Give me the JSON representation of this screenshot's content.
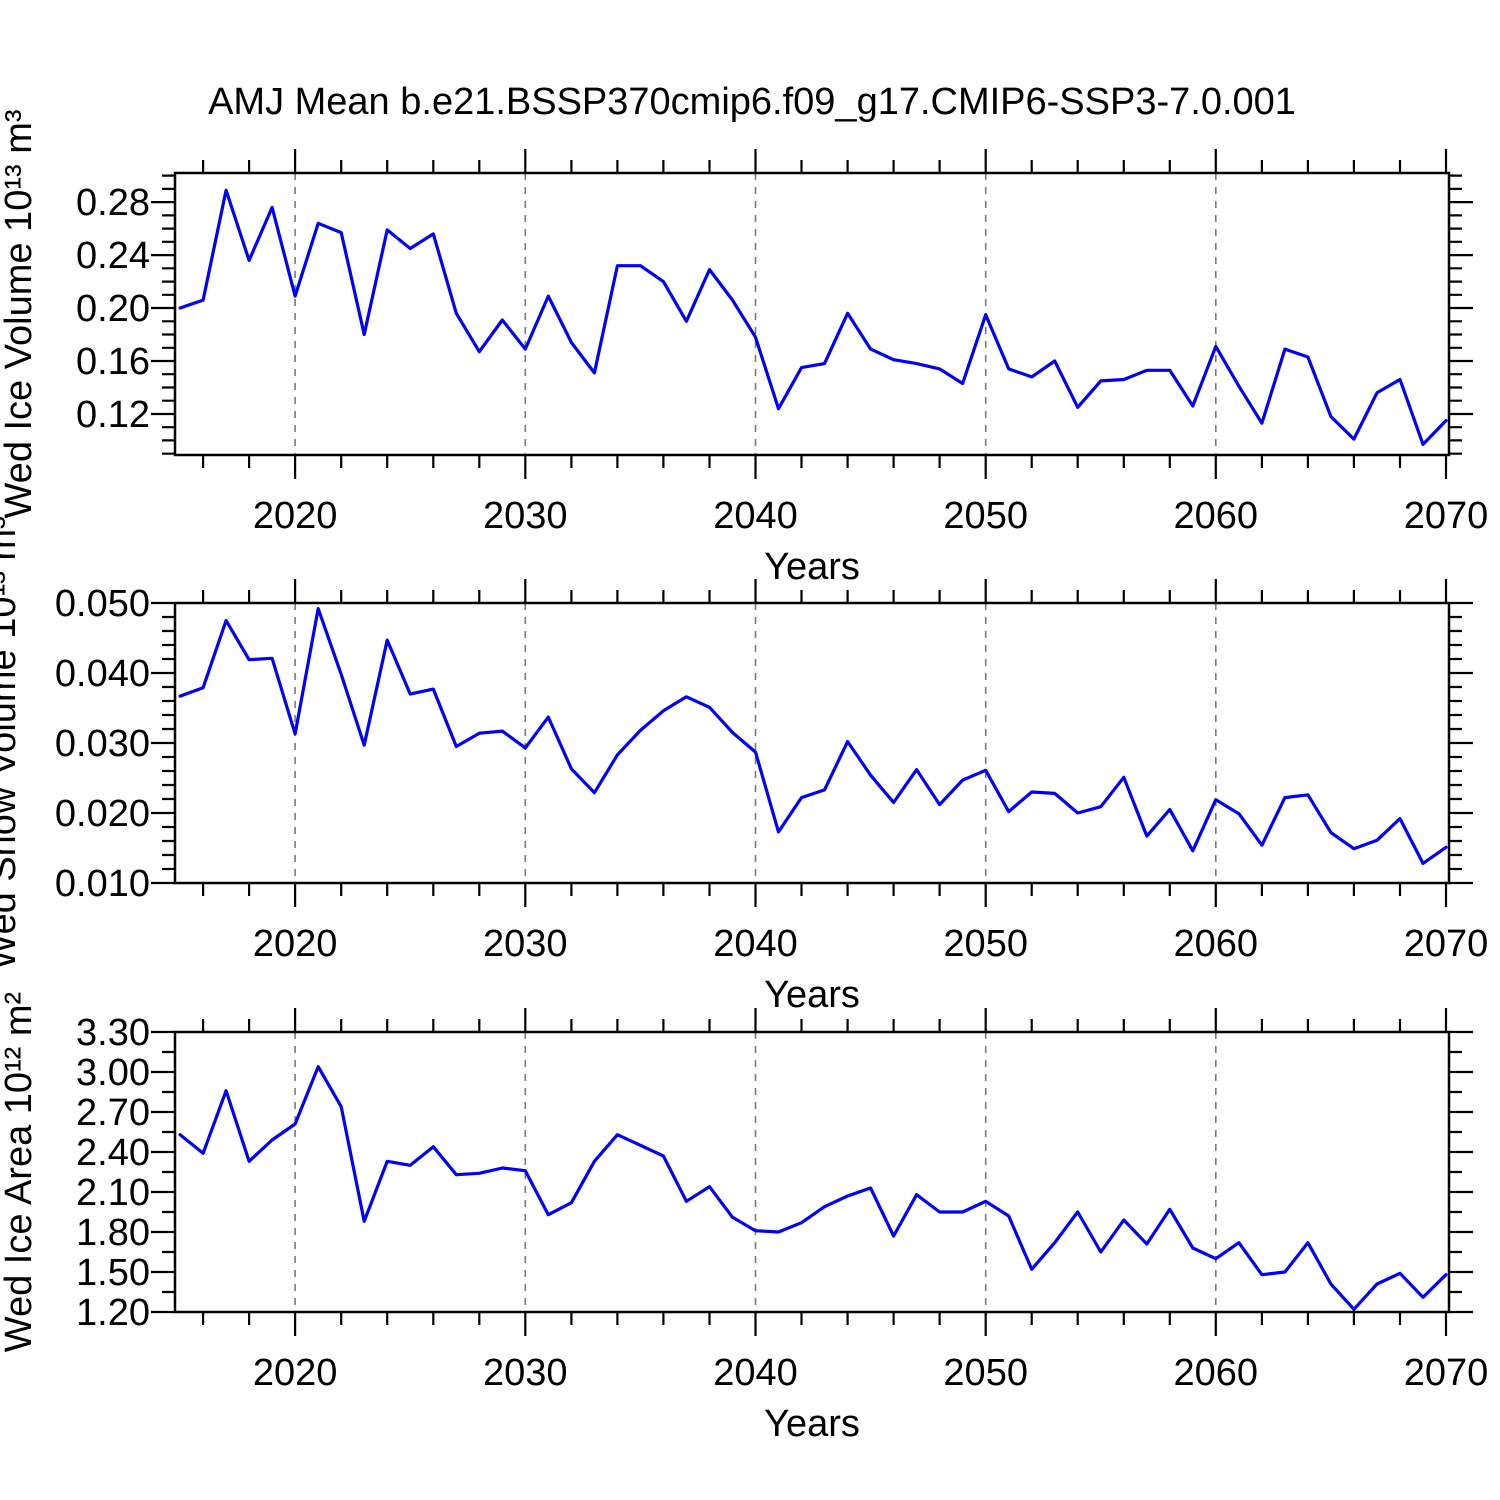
{
  "page": {
    "background": "#ffffff"
  },
  "chart_data": {
    "type": "line",
    "title": "AMJ Mean b.e21.BSSP370cmip6.f09_g17.CMIP6-SSP3-7.0.001",
    "xlabel": "Years",
    "line_color": "#0000ff",
    "grid_color": "#7a7a7a",
    "axis_color": "#000000",
    "legend": "none",
    "grid_on": "vertical-dashed-only",
    "x": [
      2015,
      2016,
      2017,
      2018,
      2019,
      2020,
      2021,
      2022,
      2023,
      2024,
      2025,
      2026,
      2027,
      2028,
      2029,
      2030,
      2031,
      2032,
      2033,
      2034,
      2035,
      2036,
      2037,
      2038,
      2039,
      2040,
      2041,
      2042,
      2043,
      2044,
      2045,
      2046,
      2047,
      2048,
      2049,
      2050,
      2051,
      2052,
      2053,
      2054,
      2055,
      2056,
      2057,
      2058,
      2059,
      2060,
      2061,
      2062,
      2063,
      2064,
      2065,
      2066,
      2067,
      2068,
      2069,
      2070
    ],
    "xlim": [
      2014.78,
      2070.13
    ],
    "xticks_major": [
      2020,
      2030,
      2040,
      2050,
      2060,
      2070
    ],
    "xtick_labels": [
      "2020",
      "2030",
      "2040",
      "2050",
      "2060",
      "2070"
    ],
    "xminor_step": 2,
    "grid_x": [
      2020,
      2030,
      2040,
      2050,
      2060
    ],
    "panels": [
      {
        "name": "ice-volume",
        "ylabel": "Wed Ice Volume 10¹³ m³",
        "ylim": [
          0.089,
          0.302
        ],
        "yticks_major": [
          0.12,
          0.16,
          0.2,
          0.24,
          0.28
        ],
        "ytick_labels": [
          "0.12",
          "0.16",
          "0.20",
          "0.24",
          "0.28"
        ],
        "yminor_step": 0.01,
        "values": [
          0.2,
          0.206,
          0.289,
          0.236,
          0.276,
          0.209,
          0.264,
          0.257,
          0.18,
          0.259,
          0.245,
          0.256,
          0.196,
          0.167,
          0.191,
          0.169,
          0.209,
          0.174,
          0.151,
          0.232,
          0.232,
          0.22,
          0.19,
          0.229,
          0.206,
          0.178,
          0.124,
          0.155,
          0.158,
          0.196,
          0.169,
          0.161,
          0.158,
          0.154,
          0.143,
          0.195,
          0.154,
          0.148,
          0.16,
          0.125,
          0.145,
          0.146,
          0.153,
          0.153,
          0.126,
          0.171,
          0.141,
          0.113,
          0.169,
          0.163,
          0.118,
          0.101,
          0.136,
          0.146,
          0.097,
          0.115
        ]
      },
      {
        "name": "snow-volume",
        "ylabel": "Wed Snow Volume 10¹³ m³",
        "ylim": [
          0.01,
          0.05
        ],
        "yticks_major": [
          0.01,
          0.02,
          0.03,
          0.04,
          0.05
        ],
        "ytick_labels": [
          "0.010",
          "0.020",
          "0.030",
          "0.040",
          "0.050"
        ],
        "yminor_step": 0.002,
        "values": [
          0.0367,
          0.0379,
          0.0475,
          0.0419,
          0.0421,
          0.0313,
          0.0492,
          0.0398,
          0.0297,
          0.0447,
          0.037,
          0.0377,
          0.0295,
          0.0314,
          0.0317,
          0.0293,
          0.0337,
          0.0263,
          0.0229,
          0.0283,
          0.0318,
          0.0346,
          0.0366,
          0.0351,
          0.0315,
          0.0287,
          0.0173,
          0.0222,
          0.0233,
          0.0302,
          0.0254,
          0.0215,
          0.0262,
          0.0212,
          0.0247,
          0.0261,
          0.0202,
          0.023,
          0.0228,
          0.02,
          0.0209,
          0.0251,
          0.0167,
          0.0205,
          0.0146,
          0.0219,
          0.0199,
          0.0154,
          0.0222,
          0.0226,
          0.0172,
          0.0149,
          0.0161,
          0.0192,
          0.0128,
          0.0151
        ]
      },
      {
        "name": "ice-area",
        "ylabel": "Wed Ice Area 10¹² m²",
        "ylim": [
          1.2,
          3.3
        ],
        "yticks_major": [
          1.2,
          1.5,
          1.8,
          2.1,
          2.4,
          2.7,
          3.0,
          3.3
        ],
        "ytick_labels": [
          "1.20",
          "1.50",
          "1.80",
          "2.10",
          "2.40",
          "2.70",
          "3.00",
          "3.30"
        ],
        "yminor_step": 0.15,
        "values": [
          2.53,
          2.39,
          2.86,
          2.33,
          2.49,
          2.61,
          3.04,
          2.74,
          1.88,
          2.33,
          2.3,
          2.44,
          2.23,
          2.24,
          2.28,
          2.26,
          1.93,
          2.02,
          2.33,
          2.53,
          2.45,
          2.37,
          2.03,
          2.14,
          1.91,
          1.81,
          1.8,
          1.87,
          1.99,
          2.07,
          2.13,
          1.77,
          2.08,
          1.95,
          1.95,
          2.03,
          1.92,
          1.52,
          1.72,
          1.95,
          1.65,
          1.89,
          1.71,
          1.97,
          1.68,
          1.6,
          1.72,
          1.48,
          1.5,
          1.72,
          1.41,
          1.22,
          1.41,
          1.49,
          1.31,
          1.48
        ]
      }
    ]
  }
}
